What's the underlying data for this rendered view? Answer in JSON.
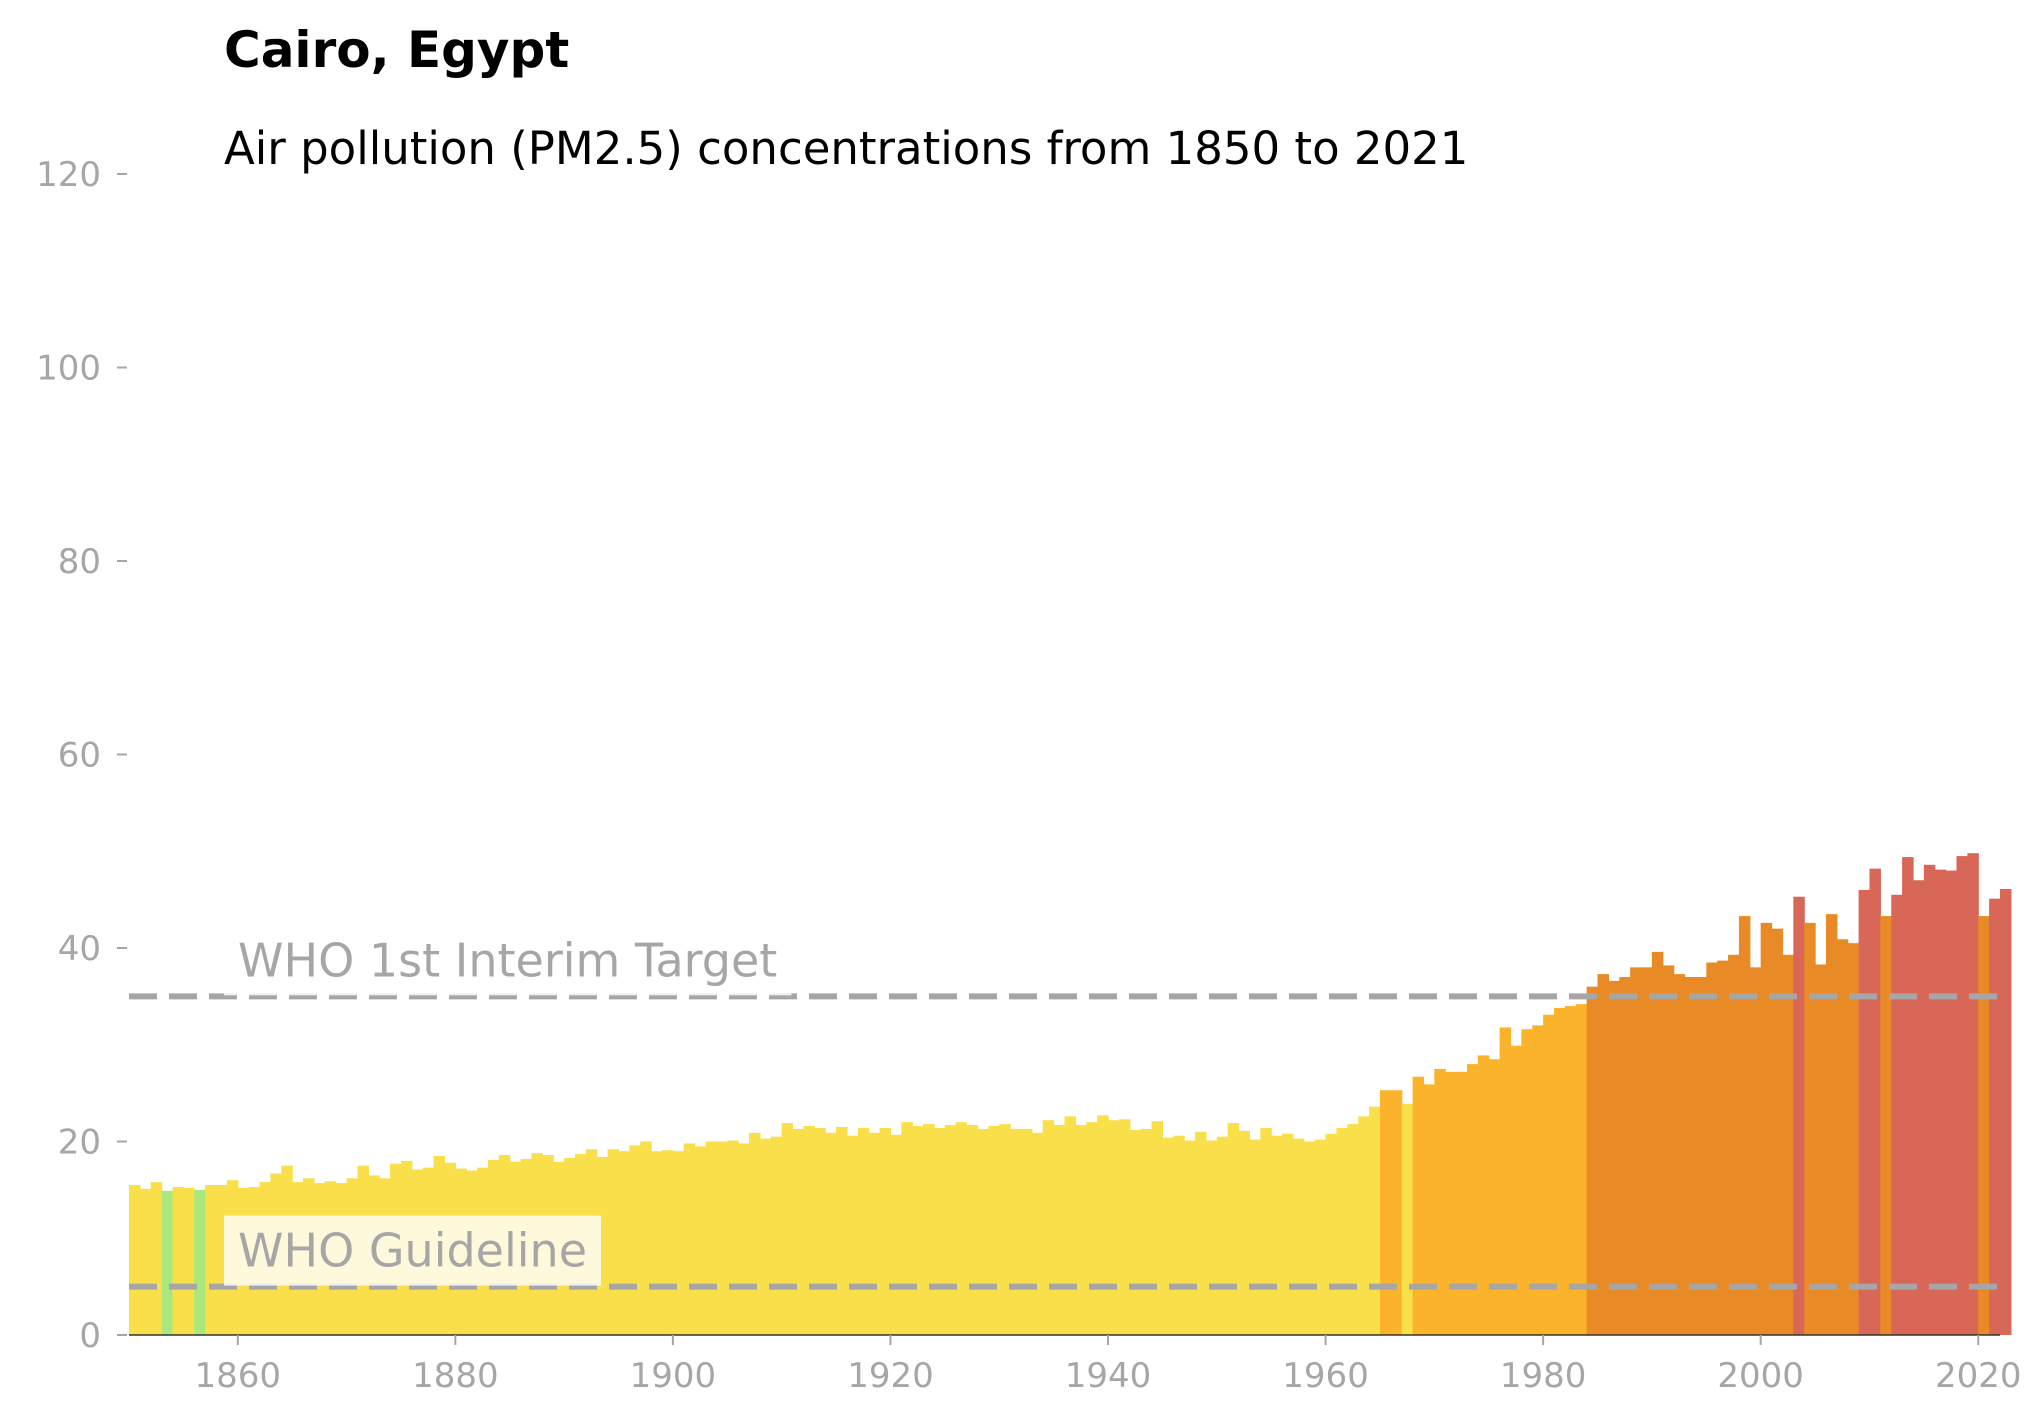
{
  "chart_data": {
    "type": "bar",
    "title": "Cairo, Egypt",
    "subtitle": "Air pollution (PM2.5) concentrations from 1850 to 2021",
    "xlabel": "",
    "ylabel": "",
    "xlim": [
      1850,
      2022
    ],
    "ylim": [
      0,
      120
    ],
    "grid": false,
    "x_ticks": [
      1860,
      1880,
      1900,
      1920,
      1940,
      1960,
      1980,
      2000,
      2020
    ],
    "y_ticks": [
      0,
      20,
      40,
      60,
      80,
      100,
      120
    ],
    "x_tick_labels": [
      "1860",
      "1880",
      "1900",
      "1920",
      "1940",
      "1960",
      "1980",
      "2000",
      "2020"
    ],
    "y_tick_labels": [
      "0",
      "20",
      "40",
      "60",
      "80",
      "100",
      "120"
    ],
    "start_year": 1850,
    "values": [
      15.5,
      15.1,
      15.8,
      14.9,
      15.3,
      15.2,
      15.0,
      15.5,
      15.5,
      16.0,
      15.2,
      15.3,
      15.8,
      16.7,
      17.5,
      15.8,
      16.2,
      15.7,
      15.9,
      15.7,
      16.2,
      17.5,
      16.5,
      16.2,
      17.7,
      18.0,
      17.1,
      17.3,
      18.5,
      17.8,
      17.2,
      17.0,
      17.3,
      18.1,
      18.6,
      17.9,
      18.2,
      18.8,
      18.6,
      17.9,
      18.3,
      18.7,
      19.2,
      18.4,
      19.2,
      19.0,
      19.6,
      20.0,
      19.0,
      19.1,
      19.0,
      19.8,
      19.5,
      20.0,
      20.0,
      20.1,
      19.8,
      20.9,
      20.3,
      20.5,
      21.9,
      21.3,
      21.6,
      21.4,
      20.9,
      21.5,
      20.6,
      21.4,
      20.9,
      21.4,
      20.7,
      22.0,
      21.6,
      21.8,
      21.4,
      21.7,
      22.0,
      21.7,
      21.3,
      21.6,
      21.8,
      21.3,
      21.3,
      20.9,
      22.2,
      21.7,
      22.6,
      21.7,
      22.0,
      22.7,
      22.2,
      22.3,
      21.2,
      21.3,
      22.1,
      20.4,
      20.6,
      20.1,
      21.0,
      20.1,
      20.5,
      21.9,
      21.1,
      20.2,
      21.4,
      20.6,
      20.8,
      20.3,
      20.0,
      20.2,
      20.8,
      21.4,
      21.8,
      22.6,
      23.6,
      25.3,
      25.3,
      23.9,
      26.7,
      25.9,
      27.5,
      27.2,
      27.2,
      28.0,
      28.9,
      28.5,
      31.8,
      29.9,
      31.6,
      32.0,
      33.1,
      33.8,
      34.0,
      34.2,
      36.0,
      37.3,
      36.6,
      37.0,
      38.0,
      38.0,
      39.6,
      38.2,
      37.3,
      37.0,
      37.0,
      38.5,
      38.7,
      39.3,
      43.3,
      38.0,
      42.6,
      42.0,
      39.3,
      45.3,
      42.6,
      38.3,
      43.5,
      40.9,
      40.5,
      46.0,
      48.2,
      43.3,
      45.5,
      49.4,
      47.0,
      48.6,
      48.1,
      48.0,
      49.5,
      49.8,
      43.3,
      45.1,
      46.1
    ],
    "reference_lines": [
      {
        "label": "WHO 1st Interim Target",
        "value": 35
      },
      {
        "label": "WHO Guideline",
        "value": 5
      }
    ],
    "color_bins": [
      {
        "max": 5,
        "color": "#a9e87f"
      },
      {
        "max": 15,
        "color": "#a9e87f"
      },
      {
        "max": 25,
        "color": "#f9e04a"
      },
      {
        "max": 35,
        "color": "#fbb32c"
      },
      {
        "max": 45,
        "color": "#e88a25"
      },
      {
        "max": 999,
        "color": "#d96758"
      }
    ],
    "reference_color": "#a6a6a6"
  }
}
